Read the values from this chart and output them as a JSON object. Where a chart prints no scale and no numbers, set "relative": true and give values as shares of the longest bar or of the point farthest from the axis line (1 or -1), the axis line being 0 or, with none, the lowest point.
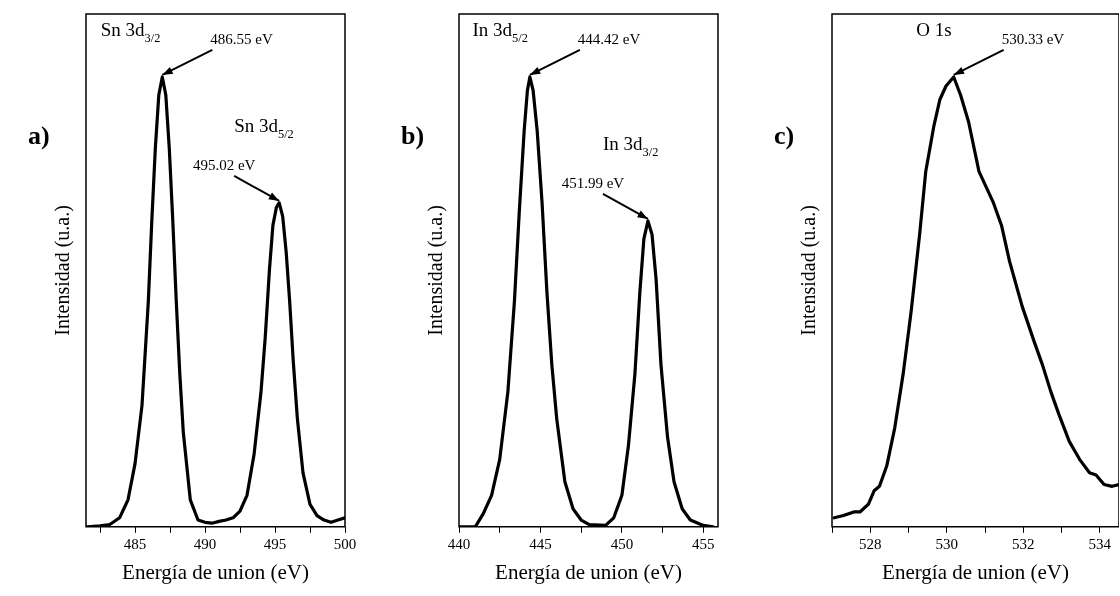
{
  "chart_data": [
    {
      "type": "line",
      "title": "a)",
      "xlabel": "Energía de union (eV)",
      "ylabel": "Intensidad (u.a.)",
      "relative": true,
      "xlim": [
        481.5,
        500
      ],
      "xticks": [
        {
          "value": 482.5,
          "label": null
        },
        485,
        {
          "value": 487.5,
          "label": null
        },
        490,
        {
          "value": 492.5,
          "label": null
        },
        495,
        {
          "value": 497.5,
          "label": null
        },
        500
      ],
      "x": [
        481.6,
        482.5,
        483.2,
        483.9,
        484.5,
        485,
        485.5,
        485.95,
        486.2,
        486.45,
        486.7,
        486.95,
        487.2,
        487.45,
        487.7,
        487.95,
        488.2,
        488.45,
        488.95,
        489.5,
        490,
        490.5,
        491,
        491.5,
        492,
        492.5,
        493,
        493.5,
        494,
        494.3,
        494.6,
        494.85,
        495.1,
        495.3,
        495.55,
        495.8,
        496.05,
        496.3,
        496.6,
        497,
        497.5,
        498,
        498.5,
        499,
        499.5,
        500
      ],
      "series": [
        {
          "color": "#000000",
          "values": [
            0,
            0.002,
            0.005,
            0.02,
            0.06,
            0.14,
            0.27,
            0.5,
            0.68,
            0.84,
            0.96,
            1,
            0.96,
            0.84,
            0.68,
            0.5,
            0.34,
            0.21,
            0.06,
            0.015,
            0.01,
            0.008,
            0.012,
            0.015,
            0.02,
            0.035,
            0.07,
            0.16,
            0.3,
            0.42,
            0.57,
            0.67,
            0.71,
            0.72,
            0.69,
            0.61,
            0.5,
            0.37,
            0.24,
            0.12,
            0.05,
            0.025,
            0.015,
            0.01,
            0.015,
            0.02
          ]
        }
      ],
      "annotations": [
        {
          "text": "486.55 eV",
          "x": 486.95,
          "y": 1
        },
        {
          "text": "495.02 eV",
          "x": 495.3,
          "y": 0.72
        },
        "Sn 3d$_{3/2}$",
        "Sn 3d$_{5/2}$"
      ]
    },
    {
      "type": "line",
      "title": "b)",
      "xlabel": "Energía de union (eV)",
      "ylabel": "Intensidad (u.a.)",
      "relative": true,
      "xlim": [
        440,
        455.9
      ],
      "xticks": [
        440,
        {
          "value": 442.5,
          "label": null
        },
        445,
        {
          "value": 447.5,
          "label": null
        },
        450,
        {
          "value": 452.5,
          "label": null
        },
        455
      ],
      "x": [
        440,
        441,
        441.5,
        442,
        442.5,
        443,
        443.4,
        443.7,
        444,
        444.2,
        444.35,
        444.55,
        444.8,
        445.1,
        445.4,
        445.7,
        446,
        446.5,
        447,
        447.5,
        448,
        449,
        449.5,
        450,
        450.4,
        450.8,
        451.1,
        451.35,
        451.6,
        451.85,
        452.1,
        452.4,
        452.8,
        453.2,
        453.7,
        454.2,
        455,
        455.6
      ],
      "series": [
        {
          "color": "#000000",
          "values": [
            0,
            0,
            0.03,
            0.07,
            0.15,
            0.3,
            0.5,
            0.7,
            0.88,
            0.97,
            1,
            0.97,
            0.88,
            0.72,
            0.52,
            0.36,
            0.24,
            0.1,
            0.04,
            0.015,
            0.005,
            0.003,
            0.02,
            0.07,
            0.18,
            0.34,
            0.52,
            0.64,
            0.68,
            0.65,
            0.55,
            0.36,
            0.2,
            0.1,
            0.04,
            0.015,
            0.003,
            0
          ]
        }
      ],
      "annotations": [
        {
          "text": "444.42 eV",
          "x": 444.35,
          "y": 1
        },
        {
          "text": "451.99 eV",
          "x": 451.6,
          "y": 0.68
        },
        "In 3d$_{5/2}$",
        "In 3d$_{3/2}$"
      ]
    },
    {
      "type": "line",
      "title": "c)",
      "xlabel": "Energía de union (eV)",
      "ylabel": "Intensidad (u.a.)",
      "relative": true,
      "xlim": [
        527,
        534.5
      ],
      "xticks": [
        {
          "value": 527,
          "label": null
        },
        528,
        {
          "value": 529,
          "label": null
        },
        530,
        {
          "value": 531,
          "label": null
        },
        532,
        {
          "value": 533,
          "label": null
        },
        534
      ],
      "x": [
        527.06,
        527.3,
        527.57,
        527.73,
        527.95,
        528.1,
        528.24,
        528.43,
        528.64,
        528.86,
        529.07,
        529.29,
        529.45,
        529.66,
        529.82,
        529.98,
        530.18,
        530.36,
        530.57,
        530.84,
        531.22,
        531.43,
        531.64,
        531.97,
        532.29,
        532.5,
        532.72,
        532.93,
        533.2,
        533.47,
        533.73,
        533.9,
        534.11,
        534.32,
        534.5
      ],
      "series": [
        {
          "color": "#000000",
          "values": [
            0.02,
            0.025,
            0.033,
            0.033,
            0.05,
            0.08,
            0.09,
            0.135,
            0.22,
            0.34,
            0.48,
            0.65,
            0.79,
            0.89,
            0.95,
            0.98,
            1,
            0.96,
            0.9,
            0.79,
            0.72,
            0.67,
            0.59,
            0.49,
            0.41,
            0.36,
            0.3,
            0.25,
            0.19,
            0.15,
            0.12,
            0.115,
            0.094,
            0.09,
            0.094
          ]
        }
      ],
      "annotations": [
        {
          "text": "530.33 eV",
          "x": 530.18,
          "y": 1
        },
        "O 1s"
      ]
    }
  ]
}
